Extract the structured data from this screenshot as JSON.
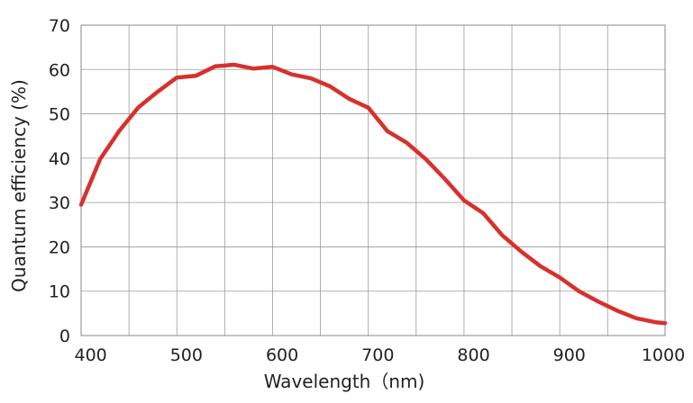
{
  "chart_data": {
    "type": "line",
    "title": "",
    "xlabel": "Wavelength（nm)",
    "ylabel": "Quantum efficiency (%)",
    "xlim": [
      390,
      1000
    ],
    "ylim": [
      0,
      70
    ],
    "x_ticks": [
      400,
      500,
      600,
      700,
      800,
      900,
      1000
    ],
    "y_ticks": [
      0,
      10,
      20,
      30,
      40,
      50,
      60,
      70
    ],
    "x_tick_labels": [
      "400",
      "500",
      "600",
      "700",
      "800",
      "900",
      "1000"
    ],
    "y_tick_labels": [
      "0",
      "10",
      "20",
      "30",
      "40",
      "50",
      "60",
      "70"
    ],
    "x_grid_values": [
      440,
      490,
      540,
      590,
      640,
      690,
      740,
      790,
      840,
      890,
      940
    ],
    "grid": true,
    "legend": "none",
    "series": [
      {
        "color": "#d7312d",
        "x": [
          390,
          410,
          430,
          450,
          470,
          490,
          510,
          530,
          550,
          570,
          590,
          610,
          630,
          650,
          670,
          690,
          710,
          730,
          750,
          770,
          790,
          810,
          830,
          850,
          870,
          890,
          910,
          930,
          950,
          970,
          990,
          1000
        ],
        "y": [
          29.5,
          39.8,
          46.2,
          51.5,
          55.0,
          58.2,
          58.6,
          60.7,
          61.1,
          60.2,
          60.6,
          58.9,
          58.0,
          56.2,
          53.4,
          51.4,
          46.1,
          43.5,
          39.8,
          35.3,
          30.5,
          27.6,
          22.6,
          18.9,
          15.6,
          13.1,
          10.0,
          7.7,
          5.6,
          3.9,
          3.0,
          2.8
        ]
      }
    ]
  }
}
